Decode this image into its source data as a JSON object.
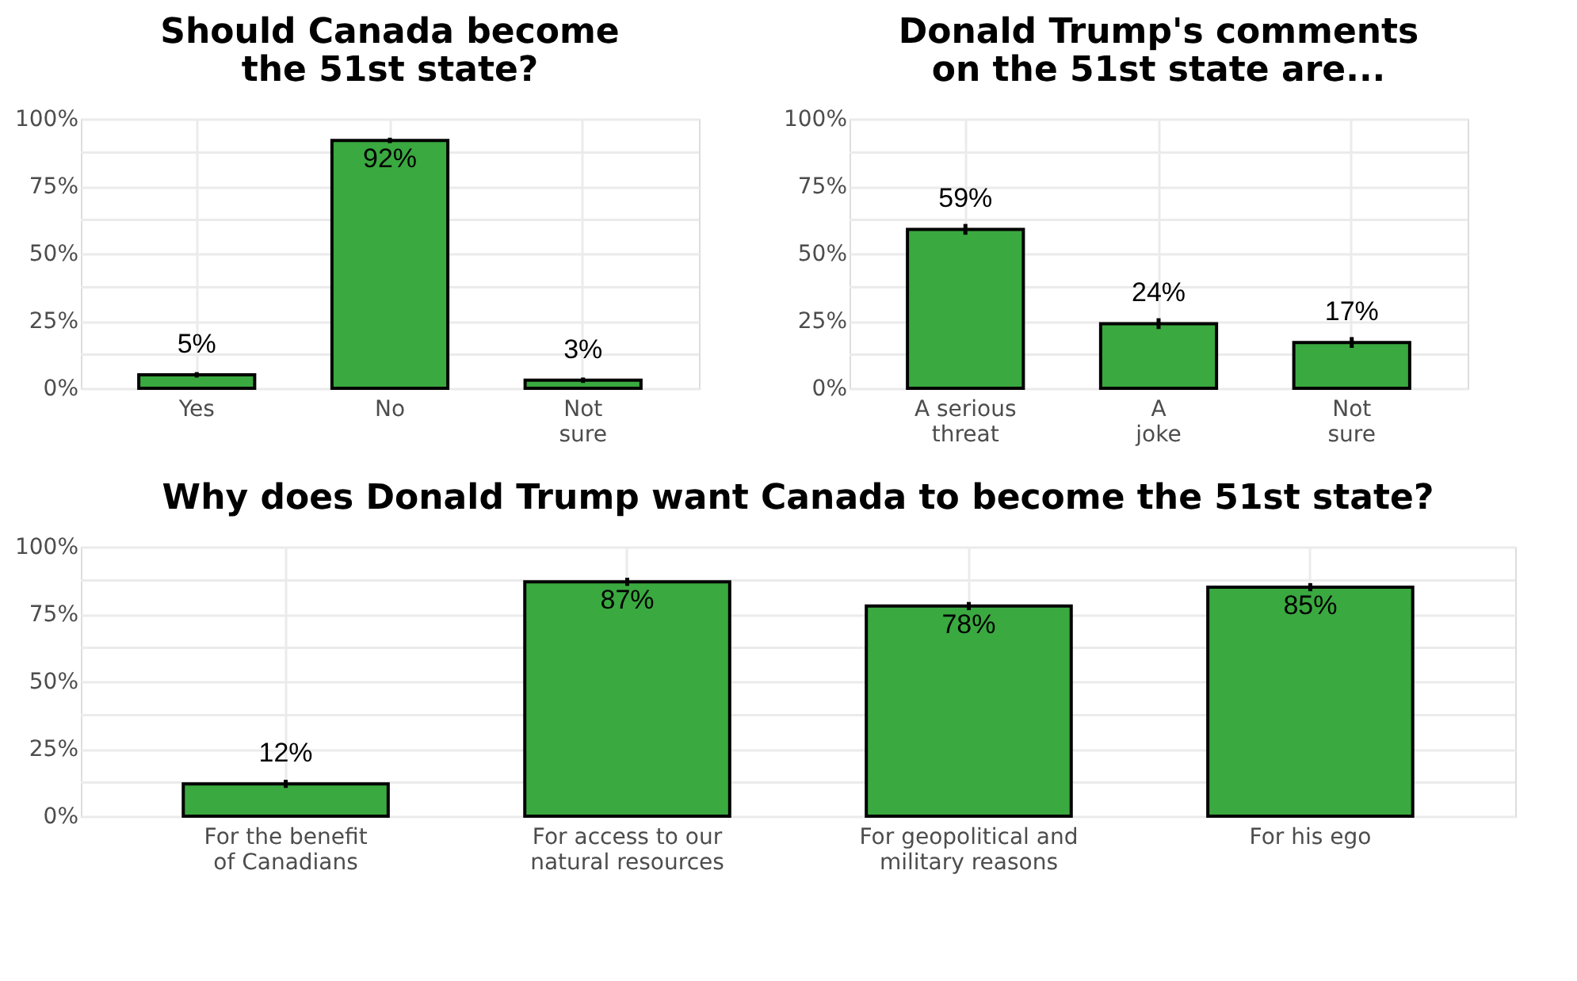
{
  "chart_data": [
    {
      "type": "bar",
      "title": "Should Canada become\nthe 51st state?",
      "categories": [
        "Yes",
        "No",
        "Not\nsure"
      ],
      "values": [
        5,
        92,
        3
      ],
      "errors": [
        1,
        1,
        1
      ],
      "value_labels": [
        "5%",
        "92%",
        "3%"
      ],
      "colors": [
        "#3aa940",
        "#3aa940",
        "#3aa940"
      ],
      "ylim": [
        0,
        100
      ],
      "yticks": [
        {
          "value": 0,
          "label": "0%"
        },
        {
          "value": 12.5,
          "label": null
        },
        {
          "value": 25,
          "label": "25%"
        },
        {
          "value": 37.5,
          "label": null
        },
        {
          "value": 50,
          "label": "50%"
        },
        {
          "value": 62.5,
          "label": null
        },
        {
          "value": 75,
          "label": "75%"
        },
        {
          "value": 87.5,
          "label": null
        },
        {
          "value": 100,
          "label": "100%"
        }
      ],
      "grid": true
    },
    {
      "type": "bar",
      "title": "Donald Trump's comments\non the 51st state are...",
      "categories": [
        "A serious\nthreat",
        "A\njoke",
        "Not\nsure"
      ],
      "values": [
        59,
        24,
        17
      ],
      "errors": [
        2,
        2,
        2
      ],
      "value_labels": [
        "59%",
        "24%",
        "17%"
      ],
      "colors": [
        "#3aa940",
        "#3aa940",
        "#3aa940"
      ],
      "ylim": [
        0,
        100
      ],
      "yticks": [
        {
          "value": 0,
          "label": "0%"
        },
        {
          "value": 12.5,
          "label": null
        },
        {
          "value": 25,
          "label": "25%"
        },
        {
          "value": 37.5,
          "label": null
        },
        {
          "value": 50,
          "label": "50%"
        },
        {
          "value": 62.5,
          "label": null
        },
        {
          "value": 75,
          "label": "75%"
        },
        {
          "value": 87.5,
          "label": null
        },
        {
          "value": 100,
          "label": "100%"
        }
      ],
      "grid": true
    },
    {
      "type": "bar",
      "title": "Why does Donald Trump want Canada to become the 51st state?",
      "categories": [
        "For the benefit\nof Canadians",
        "For access to our\nnatural resources",
        "For geopolitical and\nmilitary reasons",
        "For his ego"
      ],
      "values": [
        12,
        87,
        78,
        85
      ],
      "errors": [
        1.5,
        1.5,
        1.5,
        1.5
      ],
      "value_labels": [
        "12%",
        "87%",
        "78%",
        "85%"
      ],
      "colors": [
        "#3aa940",
        "#3aa940",
        "#3aa940",
        "#3aa940"
      ],
      "ylim": [
        0,
        100
      ],
      "yticks": [
        {
          "value": 0,
          "label": "0%"
        },
        {
          "value": 12.5,
          "label": null
        },
        {
          "value": 25,
          "label": "25%"
        },
        {
          "value": 37.5,
          "label": null
        },
        {
          "value": 50,
          "label": "50%"
        },
        {
          "value": 62.5,
          "label": null
        },
        {
          "value": 75,
          "label": "75%"
        },
        {
          "value": 87.5,
          "label": null
        },
        {
          "value": 100,
          "label": "100%"
        }
      ],
      "grid": true
    }
  ]
}
